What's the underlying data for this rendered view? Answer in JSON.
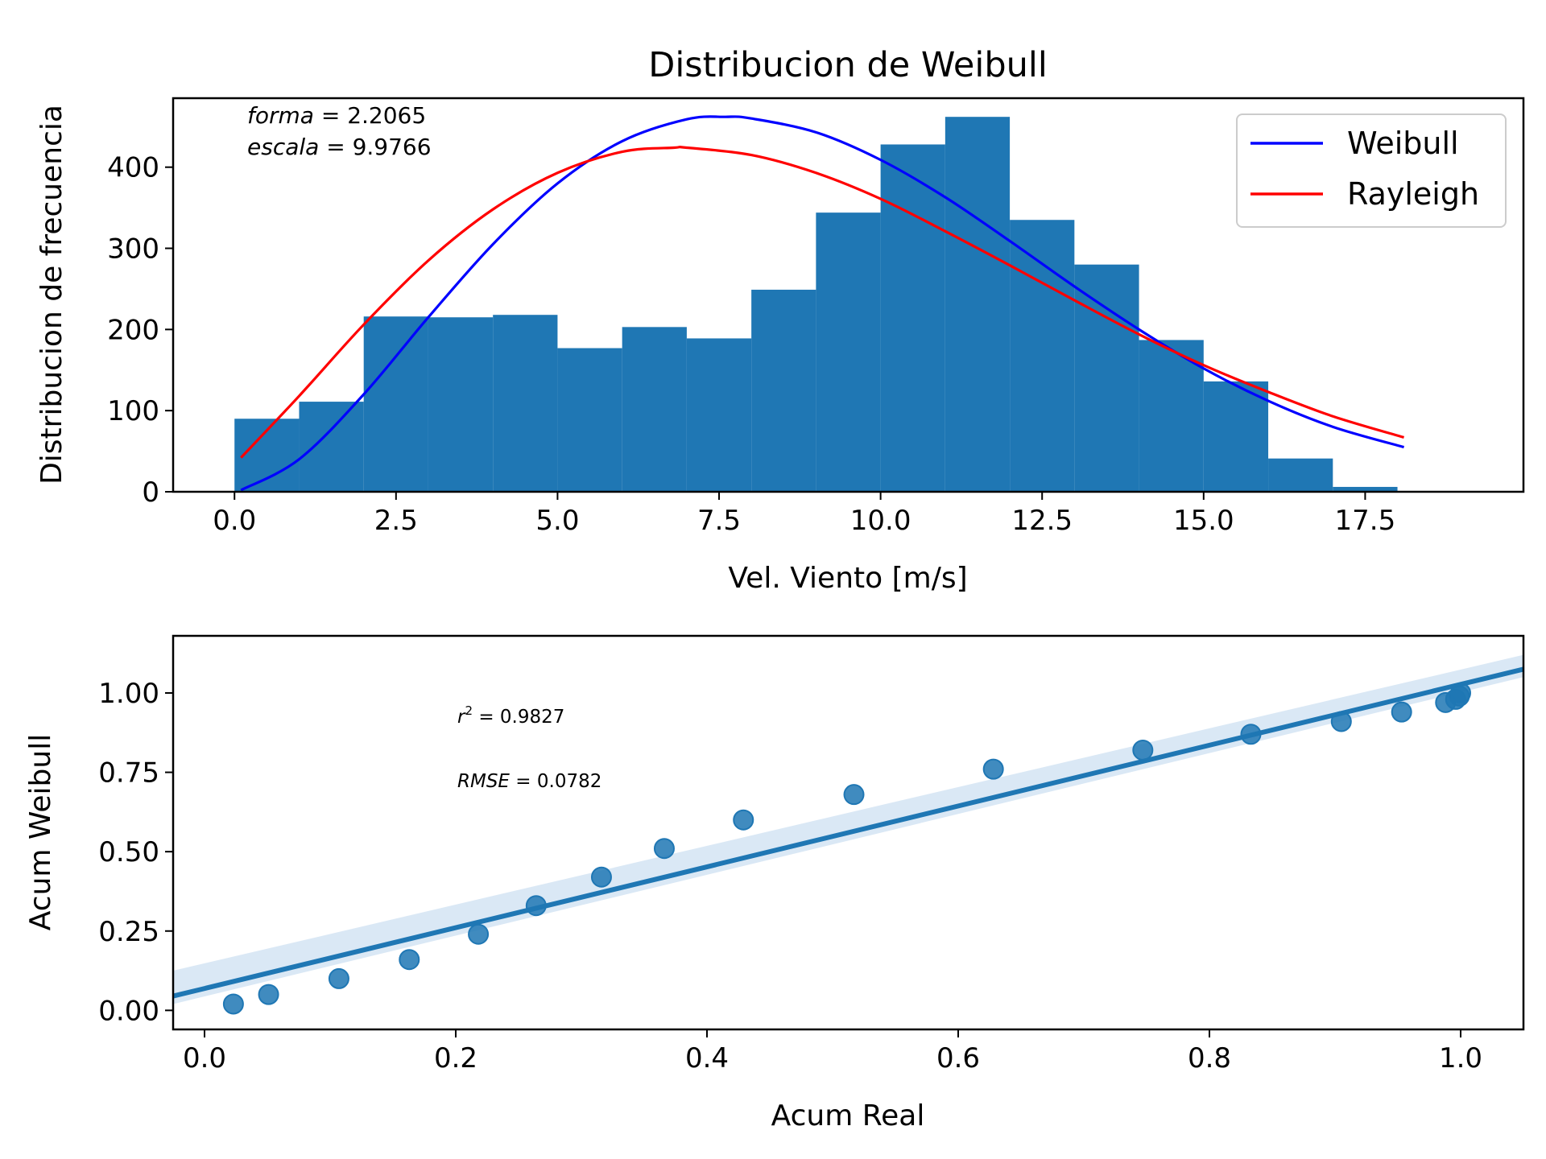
{
  "figure": {
    "title": "Distribucion de Weibull"
  },
  "chart_data": [
    {
      "type": "bar",
      "subtype": "histogram",
      "title": "Distribucion de Weibull",
      "xlabel": "Vel. Viento [m/s]",
      "ylabel": "Distribucion de frecuencia",
      "xlim": [
        -0.95,
        19.95
      ],
      "ylim": [
        0,
        485
      ],
      "xticks": [
        0.0,
        2.5,
        5.0,
        7.5,
        10.0,
        12.5,
        15.0,
        17.5
      ],
      "xtick_labels": [
        "0.0",
        "2.5",
        "5.0",
        "7.5",
        "10.0",
        "12.5",
        "15.0",
        "17.5"
      ],
      "yticks": [
        0,
        100,
        200,
        300,
        400
      ],
      "ytick_labels": [
        "0",
        "100",
        "200",
        "300",
        "400"
      ],
      "bins": [
        0,
        1,
        2,
        3,
        4,
        5,
        6,
        7,
        8,
        9,
        10,
        11,
        12,
        13,
        14,
        15,
        16,
        17,
        18,
        19
      ],
      "counts": [
        90,
        111,
        216,
        215,
        218,
        177,
        203,
        189,
        249,
        344,
        428,
        462,
        335,
        280,
        187,
        136,
        41,
        6,
        1
      ],
      "bar_color": "#1f77b4",
      "series": [
        {
          "name": "Weibull",
          "color": "#0000ff",
          "x": [
            0.1,
            1,
            2,
            3,
            4,
            5,
            6,
            7,
            7.6,
            8,
            9,
            10,
            11,
            12,
            13,
            14,
            15,
            16,
            17,
            18.1
          ],
          "y": [
            2,
            40,
            120,
            215,
            305,
            380,
            432,
            459,
            462,
            460,
            443,
            409,
            363,
            309,
            253,
            200,
            152,
            112,
            80,
            55
          ]
        },
        {
          "name": "Rayleigh",
          "color": "#ff0000",
          "x": [
            0.1,
            1,
            2,
            3,
            4,
            5,
            6,
            6.8,
            7,
            8,
            9,
            10,
            11,
            12,
            13,
            14,
            15,
            16,
            17,
            18.1
          ],
          "y": [
            42,
            118,
            206,
            285,
            348,
            393,
            419,
            424,
            424,
            415,
            393,
            361,
            321,
            279,
            236,
            194,
            156,
            123,
            93,
            67
          ]
        }
      ],
      "legend": {
        "placement": "top-right",
        "entries": [
          "Weibull",
          "Rayleigh"
        ]
      },
      "annotations": [
        {
          "var": "forma",
          "value": "2.2065",
          "text": "forma = 2.2065"
        },
        {
          "var": "escala",
          "value": "9.9766",
          "text": "escala = 9.9766"
        }
      ],
      "grid": false
    },
    {
      "type": "scatter",
      "subtype": "regression",
      "xlabel": "Acum Real",
      "ylabel": "Acum Weibull",
      "xlim": [
        -0.025,
        1.05
      ],
      "ylim": [
        -0.06,
        1.18
      ],
      "xticks": [
        0.0,
        0.2,
        0.4,
        0.6,
        0.8,
        1.0
      ],
      "xtick_labels": [
        "0.0",
        "0.2",
        "0.4",
        "0.6",
        "0.8",
        "1.0"
      ],
      "yticks": [
        0.0,
        0.25,
        0.5,
        0.75,
        1.0
      ],
      "ytick_labels": [
        "0.00",
        "0.25",
        "0.50",
        "0.75",
        "1.00"
      ],
      "points": {
        "x": [
          0.023,
          0.051,
          0.107,
          0.163,
          0.218,
          0.264,
          0.316,
          0.366,
          0.429,
          0.517,
          0.628,
          0.747,
          0.833,
          0.905,
          0.953,
          0.988,
          0.996,
          0.999,
          1.0
        ],
        "y": [
          0.02,
          0.05,
          0.1,
          0.16,
          0.24,
          0.33,
          0.42,
          0.51,
          0.6,
          0.68,
          0.76,
          0.82,
          0.87,
          0.91,
          0.94,
          0.97,
          0.98,
          0.99,
          1.0
        ]
      },
      "regression": {
        "x": [
          -0.025,
          1.05
        ],
        "y": [
          0.045,
          1.075
        ],
        "ci_lower": [
          0.02,
          1.05
        ],
        "ci_upper": [
          0.125,
          1.12
        ]
      },
      "point_color": "#1f77b4",
      "line_color": "#1f77b4",
      "ci_color": "#c6dbef",
      "annotations": [
        {
          "var": "r",
          "value": "0.9827",
          "text": "r^2 = 0.9827"
        },
        {
          "var": "RMSE",
          "value": "0.0782",
          "text": "RMSE = 0.0782"
        }
      ],
      "grid": false
    }
  ]
}
